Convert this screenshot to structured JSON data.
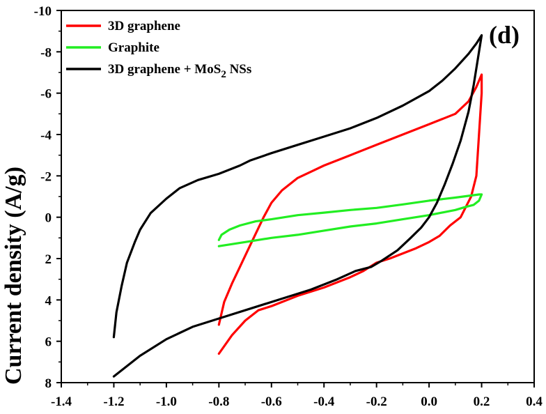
{
  "chart_data": {
    "type": "line",
    "title": "",
    "xlabel": "",
    "ylabel": "Current density (A/g)",
    "panel_label": "(d)",
    "xlim": [
      -1.4,
      0.4
    ],
    "ylim": [
      8,
      -10
    ],
    "y_inverted": true,
    "xticks": [
      "-1.4",
      "-1.2",
      "-1.0",
      "-0.8",
      "-0.6",
      "-0.4",
      "-0.2",
      "0.0",
      "0.2",
      "0.4"
    ],
    "yticks": [
      "-10",
      "-8",
      "-6",
      "-4",
      "-2",
      "0",
      "2",
      "4",
      "6",
      "8"
    ],
    "grid": false,
    "legend_position": "top-left",
    "series": [
      {
        "name": "3D graphene",
        "legend_main": "3D graphene",
        "legend_sub": "",
        "legend_suffix": "",
        "color": "#ff0000",
        "points": [
          [
            -0.8,
            5.2
          ],
          [
            -0.78,
            4.1
          ],
          [
            -0.75,
            3.2
          ],
          [
            -0.72,
            2.4
          ],
          [
            -0.69,
            1.6
          ],
          [
            -0.66,
            0.8
          ],
          [
            -0.63,
            0.0
          ],
          [
            -0.6,
            -0.7
          ],
          [
            -0.56,
            -1.3
          ],
          [
            -0.5,
            -1.9
          ],
          [
            -0.45,
            -2.2
          ],
          [
            -0.4,
            -2.5
          ],
          [
            -0.35,
            -2.75
          ],
          [
            -0.3,
            -3.0
          ],
          [
            -0.2,
            -3.5
          ],
          [
            -0.1,
            -4.0
          ],
          [
            0.0,
            -4.5
          ],
          [
            0.05,
            -4.75
          ],
          [
            0.1,
            -5.0
          ],
          [
            0.15,
            -5.6
          ],
          [
            0.18,
            -6.3
          ],
          [
            0.2,
            -6.9
          ],
          [
            0.2,
            -6.0
          ],
          [
            0.19,
            -4.0
          ],
          [
            0.18,
            -2.0
          ],
          [
            0.16,
            -1.0
          ],
          [
            0.12,
            0.0
          ],
          [
            0.08,
            0.4
          ],
          [
            0.04,
            0.9
          ],
          [
            0.0,
            1.2
          ],
          [
            -0.05,
            1.5
          ],
          [
            -0.1,
            1.75
          ],
          [
            -0.15,
            2.0
          ],
          [
            -0.2,
            2.2
          ],
          [
            -0.25,
            2.6
          ],
          [
            -0.3,
            2.9
          ],
          [
            -0.4,
            3.4
          ],
          [
            -0.5,
            3.8
          ],
          [
            -0.6,
            4.3
          ],
          [
            -0.65,
            4.5
          ],
          [
            -0.7,
            5.0
          ],
          [
            -0.75,
            5.7
          ],
          [
            -0.8,
            6.6
          ]
        ]
      },
      {
        "name": "Graphite",
        "legend_main": "Graphite",
        "legend_sub": "",
        "legend_suffix": "",
        "color": "#22ee22",
        "points": [
          [
            -0.8,
            1.1
          ],
          [
            -0.79,
            0.85
          ],
          [
            -0.76,
            0.6
          ],
          [
            -0.72,
            0.4
          ],
          [
            -0.66,
            0.2
          ],
          [
            -0.6,
            0.1
          ],
          [
            -0.5,
            -0.1
          ],
          [
            -0.4,
            -0.22
          ],
          [
            -0.3,
            -0.35
          ],
          [
            -0.2,
            -0.45
          ],
          [
            -0.1,
            -0.62
          ],
          [
            0.0,
            -0.8
          ],
          [
            0.1,
            -0.95
          ],
          [
            0.16,
            -1.05
          ],
          [
            0.19,
            -1.1
          ],
          [
            0.2,
            -1.1
          ],
          [
            0.19,
            -0.8
          ],
          [
            0.17,
            -0.6
          ],
          [
            0.14,
            -0.5
          ],
          [
            0.1,
            -0.35
          ],
          [
            0.0,
            -0.1
          ],
          [
            -0.1,
            0.1
          ],
          [
            -0.2,
            0.3
          ],
          [
            -0.3,
            0.45
          ],
          [
            -0.4,
            0.65
          ],
          [
            -0.5,
            0.85
          ],
          [
            -0.6,
            1.0
          ],
          [
            -0.7,
            1.2
          ],
          [
            -0.8,
            1.4
          ]
        ]
      },
      {
        "name": "3D graphene + MoS2 NSs",
        "legend_main": "3D graphene + MoS",
        "legend_sub": "2",
        "legend_suffix": " NSs",
        "color": "#000000",
        "points": [
          [
            -1.2,
            5.8
          ],
          [
            -1.19,
            4.6
          ],
          [
            -1.17,
            3.3
          ],
          [
            -1.15,
            2.2
          ],
          [
            -1.12,
            1.2
          ],
          [
            -1.1,
            0.6
          ],
          [
            -1.06,
            -0.2
          ],
          [
            -1.0,
            -0.9
          ],
          [
            -0.95,
            -1.4
          ],
          [
            -0.88,
            -1.8
          ],
          [
            -0.8,
            -2.1
          ],
          [
            -0.72,
            -2.5
          ],
          [
            -0.68,
            -2.75
          ],
          [
            -0.6,
            -3.1
          ],
          [
            -0.5,
            -3.5
          ],
          [
            -0.4,
            -3.9
          ],
          [
            -0.3,
            -4.3
          ],
          [
            -0.2,
            -4.8
          ],
          [
            -0.1,
            -5.4
          ],
          [
            0.0,
            -6.1
          ],
          [
            0.05,
            -6.6
          ],
          [
            0.1,
            -7.2
          ],
          [
            0.15,
            -7.9
          ],
          [
            0.18,
            -8.4
          ],
          [
            0.2,
            -8.8
          ],
          [
            0.19,
            -8.0
          ],
          [
            0.17,
            -6.4
          ],
          [
            0.15,
            -5.1
          ],
          [
            0.12,
            -3.7
          ],
          [
            0.09,
            -2.6
          ],
          [
            0.06,
            -1.6
          ],
          [
            0.03,
            -0.7
          ],
          [
            0.0,
            0.0
          ],
          [
            -0.03,
            0.5
          ],
          [
            -0.07,
            1.0
          ],
          [
            -0.12,
            1.6
          ],
          [
            -0.18,
            2.1
          ],
          [
            -0.22,
            2.4
          ],
          [
            -0.28,
            2.6
          ],
          [
            -0.35,
            3.0
          ],
          [
            -0.45,
            3.5
          ],
          [
            -0.55,
            3.9
          ],
          [
            -0.65,
            4.3
          ],
          [
            -0.8,
            4.9
          ],
          [
            -0.9,
            5.3
          ],
          [
            -1.0,
            5.9
          ],
          [
            -1.1,
            6.7
          ],
          [
            -1.2,
            7.7
          ]
        ]
      }
    ]
  }
}
